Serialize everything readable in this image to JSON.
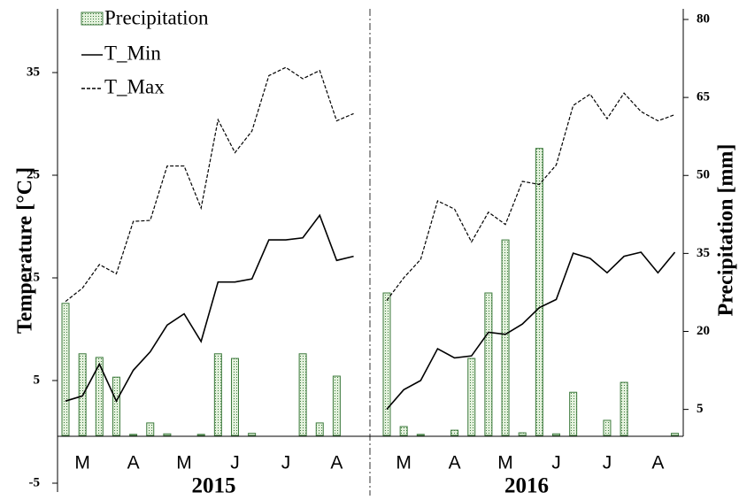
{
  "chart_data": {
    "type": "combo",
    "ylabel": "Temperature [°C ]",
    "y2label": "Precipitation [mm]",
    "ylim": [
      -5,
      40
    ],
    "yticks": [
      -5,
      5,
      15,
      25,
      35
    ],
    "y2lim": [
      0,
      80
    ],
    "y2ticks": [
      5,
      20,
      35,
      50,
      65,
      80
    ],
    "legend": "upper left",
    "panels": [
      {
        "xlabel": "2015",
        "categories": [
          null,
          "M",
          null,
          null,
          "A",
          null,
          null,
          "M",
          null,
          null,
          "J",
          null,
          null,
          "J",
          null,
          null,
          "A",
          null
        ],
        "series": [
          {
            "name": "Precipitation",
            "type": "bar",
            "axis": "y2",
            "color": "#3d7a3d",
            "values": [
              25.4,
              15.7,
              15.0,
              11.2,
              0.2,
              2.4,
              0.3,
              0,
              0.2,
              15.7,
              14.8,
              0.4,
              0,
              0,
              15.7,
              2.4,
              11.4,
              0
            ]
          },
          {
            "name": "T_Min",
            "type": "line",
            "dash": false,
            "color": "#000000",
            "values": [
              3.0,
              3.5,
              6.6,
              3.0,
              6.0,
              7.8,
              10.4,
              11.5,
              8.8,
              14.6,
              14.6,
              14.9,
              18.7,
              18.7,
              18.9,
              21.1,
              16.7,
              17.1
            ]
          },
          {
            "name": "T_Max",
            "type": "line",
            "dash": true,
            "color": "#000000",
            "values": [
              12.7,
              14.0,
              16.3,
              15.4,
              20.5,
              20.6,
              25.9,
              25.9,
              21.8,
              30.4,
              27.2,
              29.3,
              34.7,
              35.5,
              34.4,
              35.2,
              30.3,
              31.0
            ]
          }
        ]
      },
      {
        "xlabel": "2016",
        "categories": [
          null,
          "M",
          null,
          null,
          "A",
          null,
          null,
          "M",
          null,
          null,
          "J",
          null,
          null,
          "J",
          null,
          null,
          "A",
          null
        ],
        "series": [
          {
            "name": "Precipitation",
            "type": "bar",
            "axis": "y2",
            "color": "#3d7a3d",
            "values": [
              27.4,
              1.7,
              0.2,
              0,
              1.0,
              14.8,
              27.4,
              37.6,
              0.5,
              55.2,
              0.3,
              8.3,
              0,
              2.9,
              10.2,
              0,
              0,
              0.4
            ]
          },
          {
            "name": "T_Min",
            "type": "line",
            "dash": false,
            "color": "#000000",
            "values": [
              2.2,
              4.1,
              5.0,
              8.1,
              7.2,
              7.4,
              9.7,
              9.5,
              10.5,
              12.1,
              12.9,
              17.4,
              16.9,
              15.5,
              17.1,
              17.5,
              15.5,
              17.5
            ]
          },
          {
            "name": "T_Max",
            "type": "line",
            "dash": true,
            "color": "#000000",
            "values": [
              12.8,
              15.0,
              16.8,
              22.5,
              21.7,
              18.5,
              21.4,
              20.2,
              24.4,
              24.1,
              26.0,
              31.8,
              32.9,
              30.5,
              33.0,
              31.2,
              30.3,
              30.9
            ]
          }
        ]
      }
    ]
  }
}
